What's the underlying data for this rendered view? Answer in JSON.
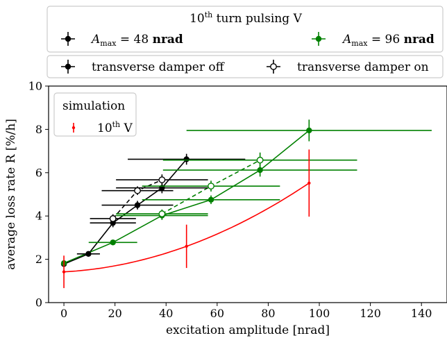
{
  "chart_data": {
    "type": "scatter",
    "xlabel": "excitation amplitude [nrad]",
    "ylabel": "average loss rate R [%/h]",
    "xlim": [
      -6,
      150
    ],
    "ylim": [
      0,
      10
    ],
    "xticks": [
      0,
      20,
      40,
      60,
      80,
      100,
      120,
      140
    ],
    "yticks": [
      0,
      2,
      4,
      6,
      8,
      10
    ],
    "grid": false,
    "top_legend": {
      "title": "10th turn pulsing V",
      "entries": [
        {
          "label": "A_max = 48 nrad",
          "color": "#000000"
        },
        {
          "label": "A_max = 96 nrad",
          "color": "#008000"
        }
      ]
    },
    "damper_legend": {
      "entries": [
        {
          "label": "transverse damper off",
          "marker": "filled"
        },
        {
          "label": "transverse damper on",
          "marker": "open"
        }
      ]
    },
    "sim_legend": {
      "title": "simulation",
      "entries": [
        {
          "label": "10th V",
          "color": "#ff0000"
        }
      ]
    },
    "series": [
      {
        "group": "48 nrad, damper off",
        "color": "#000000",
        "marker": "filled",
        "line_style": "solid",
        "points": [
          {
            "x": 0,
            "y": 1.78,
            "xerr": 0,
            "yerr": 0.1
          },
          {
            "x": 9.6,
            "y": 2.25,
            "xerr": 4.5,
            "yerr": 0.1
          },
          {
            "x": 19.2,
            "y": 3.68,
            "xerr": 9,
            "yerr": 0.2
          },
          {
            "x": 28.8,
            "y": 4.5,
            "xerr": 14,
            "yerr": 0.2
          },
          {
            "x": 38.4,
            "y": 5.3,
            "xerr": 18,
            "yerr": 0.25
          },
          {
            "x": 48,
            "y": 6.62,
            "xerr": 23,
            "yerr": 0.25
          }
        ]
      },
      {
        "group": "48 nrad, damper on",
        "color": "#000000",
        "marker": "open",
        "line_style": "dashed",
        "points": [
          {
            "x": 19.2,
            "y": 3.88,
            "xerr": 9,
            "yerr": 0.2
          },
          {
            "x": 28.8,
            "y": 5.17,
            "xerr": 14,
            "yerr": 0.2
          },
          {
            "x": 38.4,
            "y": 5.67,
            "xerr": 18,
            "yerr": 0.25
          }
        ]
      },
      {
        "group": "96 nrad, damper off",
        "color": "#008000",
        "marker": "filled",
        "line_style": "solid",
        "points": [
          {
            "x": 0,
            "y": 1.82,
            "xerr": 0,
            "yerr": 0.1
          },
          {
            "x": 19.2,
            "y": 2.78,
            "xerr": 9.5,
            "yerr": 0.1
          },
          {
            "x": 38.4,
            "y": 4.02,
            "xerr": 18,
            "yerr": 0.2
          },
          {
            "x": 57.6,
            "y": 4.75,
            "xerr": 27,
            "yerr": 0.2
          },
          {
            "x": 76.8,
            "y": 6.12,
            "xerr": 38,
            "yerr": 0.3
          },
          {
            "x": 96,
            "y": 7.95,
            "xerr": 48,
            "yerr": 0.5
          }
        ]
      },
      {
        "group": "96 nrad, damper on",
        "color": "#008000",
        "marker": "open",
        "line_style": "dashed",
        "points": [
          {
            "x": 38.4,
            "y": 4.1,
            "xerr": 18,
            "yerr": 0.2
          },
          {
            "x": 57.6,
            "y": 5.38,
            "xerr": 27,
            "yerr": 0.25
          },
          {
            "x": 76.8,
            "y": 6.58,
            "xerr": 38,
            "yerr": 0.35
          }
        ]
      },
      {
        "group": "simulation 10th V",
        "color": "#ff0000",
        "marker": "dot",
        "line_style": "curve",
        "points": [
          {
            "x": 0,
            "y": 1.42,
            "xerr": 0,
            "yerr": 0.75
          },
          {
            "x": 48,
            "y": 2.6,
            "xerr": 0,
            "yerr": 1.0
          },
          {
            "x": 96,
            "y": 5.52,
            "xerr": 0,
            "yerr": 1.55
          }
        ]
      }
    ]
  }
}
